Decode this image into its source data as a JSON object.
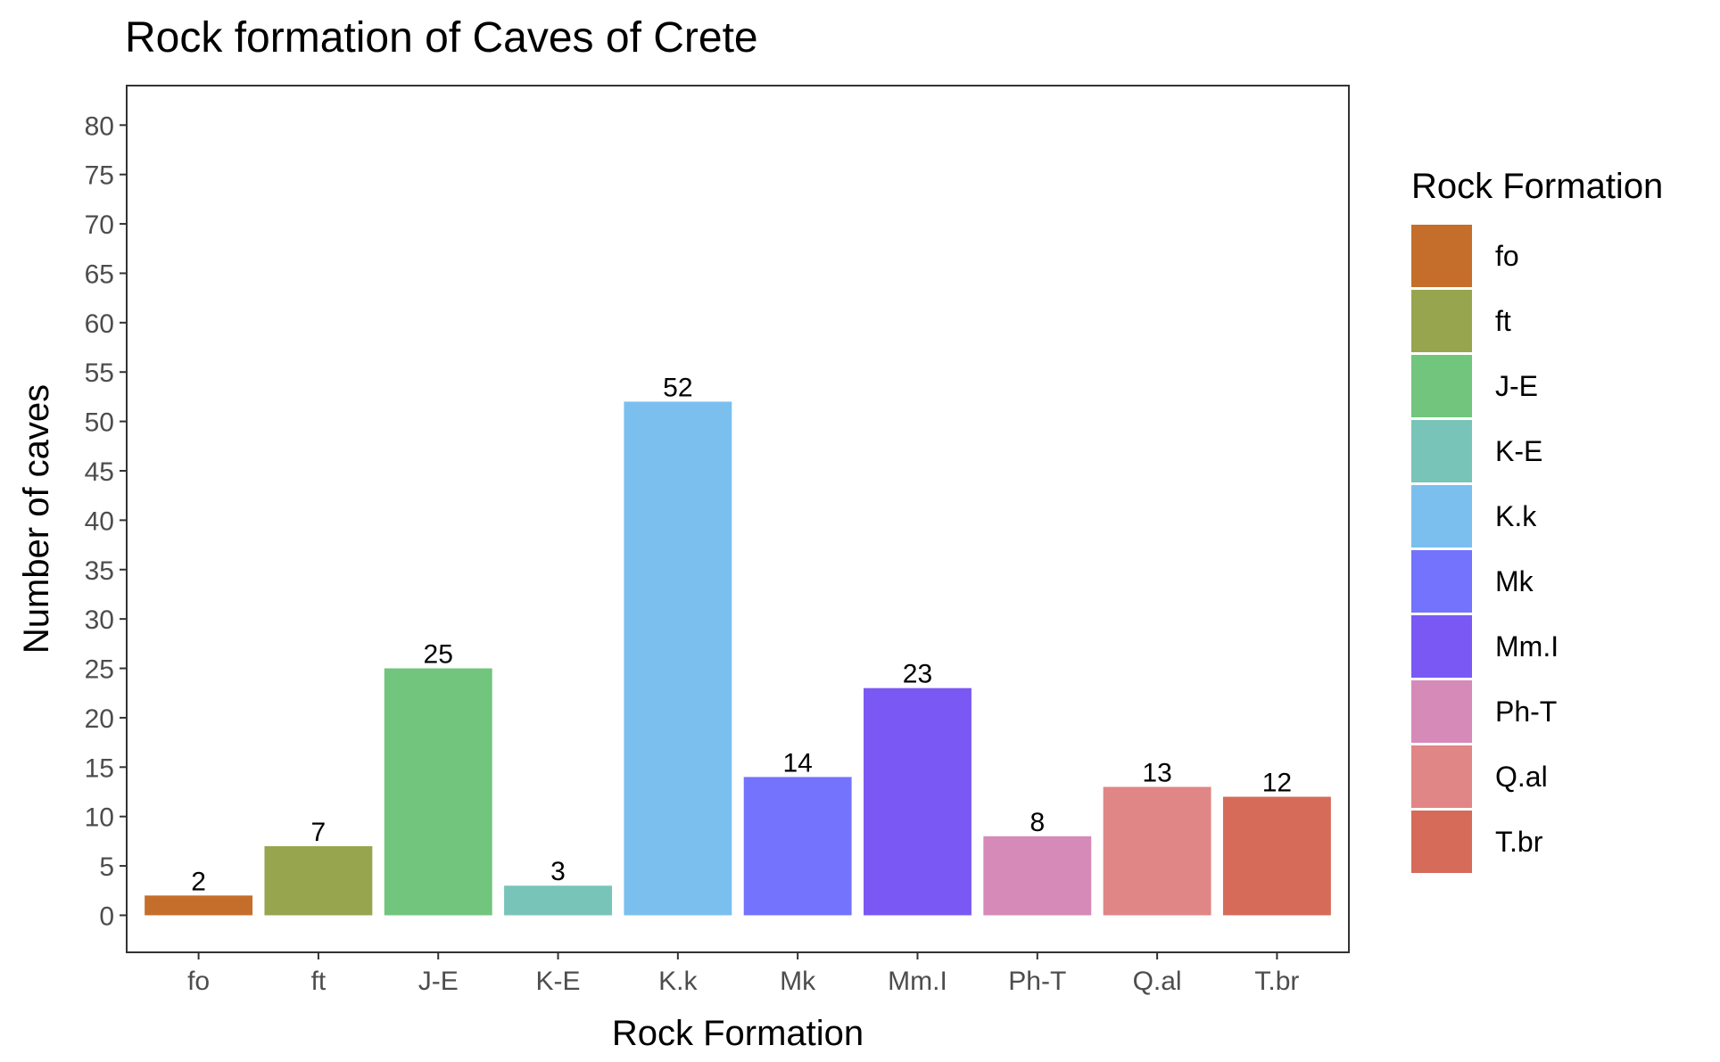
{
  "chart_data": {
    "type": "bar",
    "title": "Rock formation of Caves of Crete",
    "xlabel": "Rock Formation",
    "ylabel": "Number of caves",
    "categories": [
      "fo",
      "ft",
      "J-E",
      "K-E",
      "K.k",
      "Mk",
      "Mm.I",
      "Ph-T",
      "Q.al",
      "T.br"
    ],
    "values": [
      2,
      7,
      25,
      3,
      52,
      14,
      23,
      8,
      13,
      12
    ],
    "colors": [
      "#C56E2B",
      "#98A54F",
      "#72C57C",
      "#79C4B8",
      "#7BBFEF",
      "#7373FD",
      "#7A58F4",
      "#D68AB8",
      "#E08686",
      "#D56B58"
    ],
    "yticks": [
      0,
      5,
      10,
      15,
      20,
      25,
      30,
      35,
      40,
      45,
      50,
      55,
      60,
      65,
      70,
      75,
      80
    ],
    "ylim": [
      -3.75,
      84
    ],
    "grid": false,
    "legend": {
      "title": "Rock Formation",
      "position": "right",
      "entries": [
        "fo",
        "ft",
        "J-E",
        "K-E",
        "K.k",
        "Mk",
        "Mm.I",
        "Ph-T",
        "Q.al",
        "T.br"
      ]
    }
  }
}
